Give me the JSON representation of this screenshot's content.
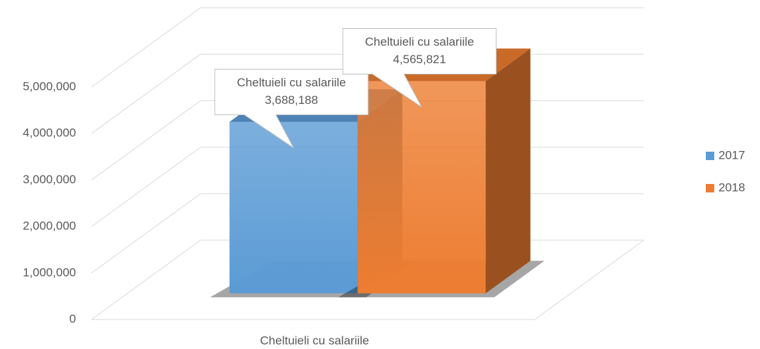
{
  "chart_data": {
    "type": "bar3d",
    "categories": [
      "Cheltuieli cu salariile"
    ],
    "series": [
      {
        "name": "2017",
        "color": "#5b9bd5",
        "values": [
          3688188
        ],
        "value_labels": [
          "3,688,188"
        ]
      },
      {
        "name": "2018",
        "color": "#ed7d31",
        "values": [
          4565821
        ],
        "value_labels": [
          "4,565,821"
        ]
      }
    ],
    "ylim": [
      0,
      5000000
    ],
    "yticks": [
      0,
      {
        "value": 1000000,
        "label": "1,000,000"
      },
      {
        "value": 2000000,
        "label": "2,000,000"
      },
      {
        "value": 3000000,
        "label": "3,000,000"
      },
      {
        "value": 4000000,
        "label": "4,000,000"
      },
      {
        "value": 5000000,
        "label": "5,000,000"
      }
    ],
    "grid": true,
    "legend": "right"
  }
}
